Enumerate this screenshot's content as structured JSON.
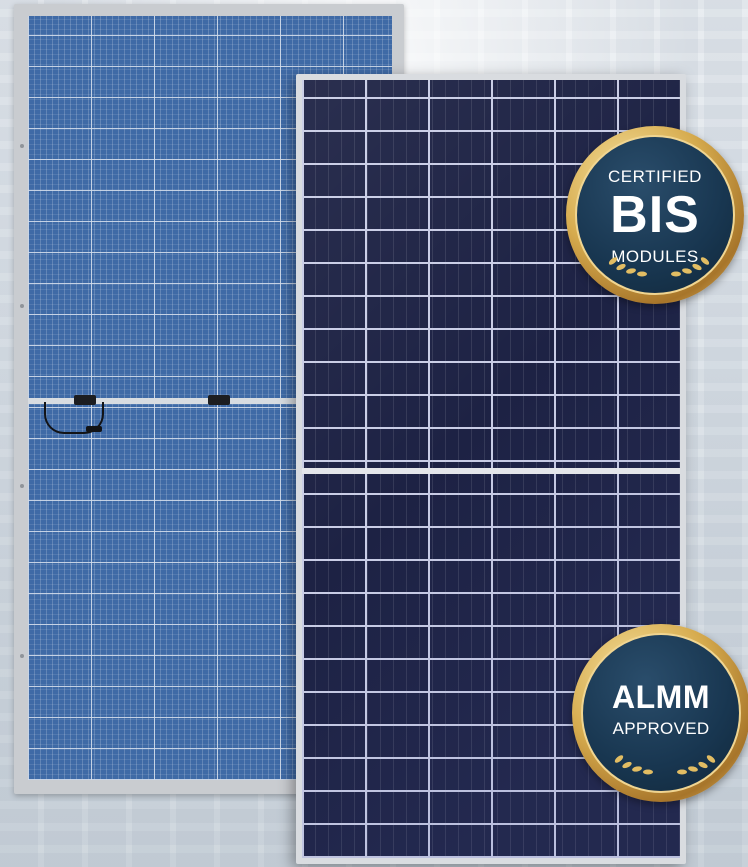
{
  "badges": {
    "bis": {
      "top_text": "CERTIFIED",
      "main_text": "BIS",
      "bottom_text": "MODULES"
    },
    "almm": {
      "main_text": "ALMM",
      "bottom_text": "APPROVED"
    }
  },
  "colors": {
    "badge_navy": "#183650",
    "badge_gold": "#d6ab4e",
    "front_cells": "#1d2244",
    "back_cells": "#3f6aa6"
  },
  "icons": [
    "laurel-wreath-icon",
    "laurel-wreath-icon"
  ]
}
